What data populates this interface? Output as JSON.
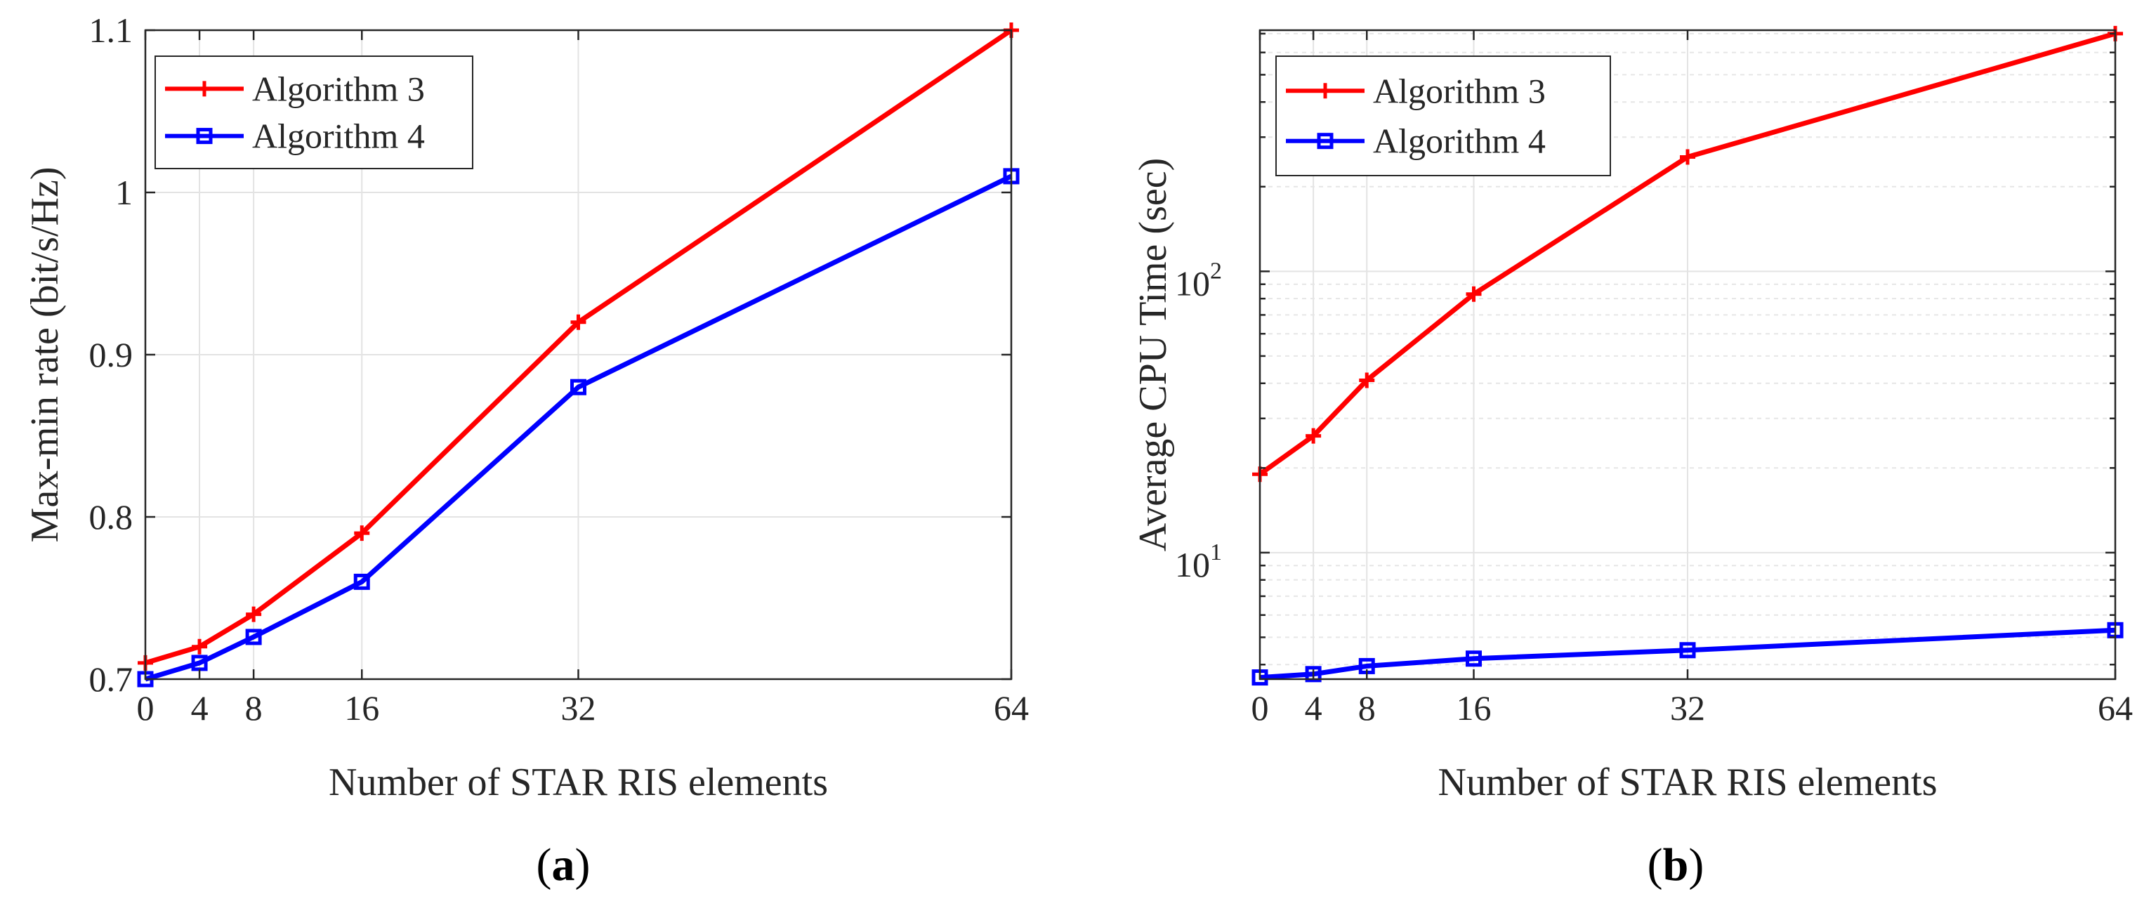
{
  "figure": {
    "captions": [
      {
        "open": "(",
        "letter": "a",
        "close": ")"
      },
      {
        "open": "(",
        "letter": "b",
        "close": ")"
      }
    ]
  },
  "chart_data": [
    {
      "type": "line",
      "x": [
        0,
        4,
        8,
        16,
        32,
        64
      ],
      "series": [
        {
          "name": "Algorithm 3",
          "values": [
            0.71,
            0.72,
            0.74,
            0.79,
            0.92,
            1.1
          ],
          "color": "#ff0000",
          "marker": "plus"
        },
        {
          "name": "Algorithm 4",
          "values": [
            0.7,
            0.71,
            0.726,
            0.76,
            0.88,
            1.01
          ],
          "color": "#0000ff",
          "marker": "square"
        }
      ],
      "xlabel": "Number of STAR RIS elements",
      "ylabel": "Max-min rate (bit/s/Hz)",
      "xlim": [
        0,
        64
      ],
      "ylim": [
        0.7,
        1.1
      ],
      "yscale": "linear",
      "xticks": [
        0,
        4,
        8,
        16,
        32,
        64
      ],
      "yticks": [
        0.7,
        0.8,
        0.9,
        1.0,
        1.1
      ],
      "yticklabels": [
        "0.7",
        "0.8",
        "0.9",
        "1",
        "1.1"
      ],
      "grid": true,
      "legend": "top-left"
    },
    {
      "type": "line",
      "x": [
        0,
        4,
        8,
        16,
        32,
        64
      ],
      "series": [
        {
          "name": "Algorithm 3",
          "values": [
            19,
            26,
            41,
            83,
            255,
            700
          ],
          "color": "#ff0000",
          "marker": "plus"
        },
        {
          "name": "Algorithm 4",
          "values": [
            3.6,
            3.7,
            3.95,
            4.2,
            4.5,
            5.3
          ],
          "color": "#0000ff",
          "marker": "square"
        }
      ],
      "xlabel": "Number of STAR RIS elements",
      "ylabel": "Average CPU Time (sec)",
      "xlim": [
        0,
        64
      ],
      "ylim": [
        3.55,
        720
      ],
      "yscale": "log",
      "xticks": [
        0,
        4,
        8,
        16,
        32,
        64
      ],
      "yticks": [
        10,
        100
      ],
      "ytick_base": "10",
      "ytick_exponents": [
        "1",
        "2"
      ],
      "grid": true,
      "minor_grid": true,
      "legend": "top-left"
    }
  ]
}
